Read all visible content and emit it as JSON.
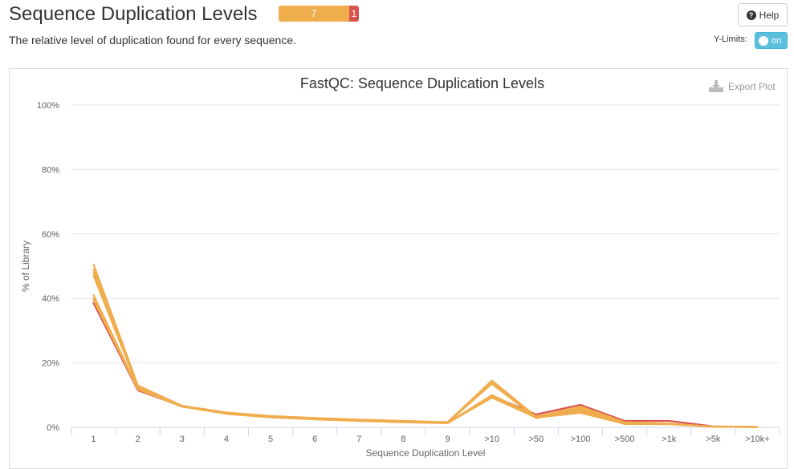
{
  "header": {
    "title": "Sequence Duplication Levels",
    "subtitle": "The relative level of duplication found for every sequence.",
    "status": {
      "warn_count": "7",
      "fail_count": "1",
      "warn_color": "#f0ad4e",
      "fail_color": "#d9534f"
    },
    "help_label": "Help",
    "ylimits_label": "Y-Limits:",
    "ylimits_toggle": "on"
  },
  "export_label": "Export Plot",
  "chart_data": {
    "type": "line",
    "title": "FastQC: Sequence Duplication Levels",
    "xlabel": "Sequence Duplication Level",
    "ylabel": "% of Library",
    "categories": [
      "1",
      "2",
      "3",
      "4",
      "5",
      "6",
      "7",
      "8",
      "9",
      ">10",
      ">50",
      ">100",
      ">500",
      ">1k",
      ">5k",
      ">10k+"
    ],
    "ylim": [
      0,
      100
    ],
    "yticks": [
      "0%",
      "20%",
      "40%",
      "60%",
      "80%",
      "100%"
    ],
    "grid": true,
    "series": [
      {
        "color": "#d9534f",
        "values": [
          38.5,
          11.5,
          6.5,
          4.3,
          3.2,
          2.6,
          2.1,
          1.7,
          1.4,
          9.8,
          4.0,
          7.0,
          2.0,
          2.0,
          0.3,
          0.1
        ]
      },
      {
        "color": "#f0ad4e",
        "values": [
          41.0,
          12.0,
          6.5,
          4.2,
          3.1,
          2.5,
          2.0,
          1.6,
          1.3,
          10.0,
          3.5,
          5.0,
          1.0,
          1.0,
          0.2,
          0.1
        ]
      },
      {
        "color": "#f0ad4e",
        "values": [
          40.0,
          12.2,
          6.6,
          4.4,
          3.3,
          2.7,
          2.2,
          1.8,
          1.5,
          9.5,
          3.2,
          4.8,
          1.2,
          1.1,
          0.2,
          0.1
        ]
      },
      {
        "color": "#f0ad4e",
        "values": [
          48.0,
          12.8,
          6.6,
          4.5,
          3.4,
          2.8,
          2.3,
          1.9,
          1.6,
          14.0,
          3.0,
          6.0,
          1.5,
          1.0,
          0.2,
          0.1
        ]
      },
      {
        "color": "#f0ad4e",
        "values": [
          50.5,
          13.0,
          6.7,
          4.6,
          3.5,
          2.9,
          2.4,
          2.0,
          1.6,
          14.5,
          3.3,
          6.5,
          1.6,
          1.2,
          0.2,
          0.1
        ]
      },
      {
        "color": "#f0ad4e",
        "values": [
          49.0,
          12.7,
          6.5,
          4.4,
          3.3,
          2.8,
          2.3,
          1.9,
          1.5,
          13.8,
          2.8,
          5.8,
          1.4,
          1.1,
          0.2,
          0.1
        ]
      },
      {
        "color": "#f0ad4e",
        "values": [
          39.5,
          11.8,
          6.4,
          4.2,
          3.1,
          2.5,
          2.0,
          1.6,
          1.3,
          9.2,
          3.0,
          4.5,
          1.1,
          1.0,
          0.2,
          0.1
        ]
      },
      {
        "color": "#f0ad4e",
        "values": [
          47.0,
          12.5,
          6.5,
          4.4,
          3.3,
          2.7,
          2.2,
          1.8,
          1.5,
          13.5,
          2.9,
          5.5,
          1.3,
          1.0,
          0.2,
          0.1
        ]
      }
    ]
  }
}
